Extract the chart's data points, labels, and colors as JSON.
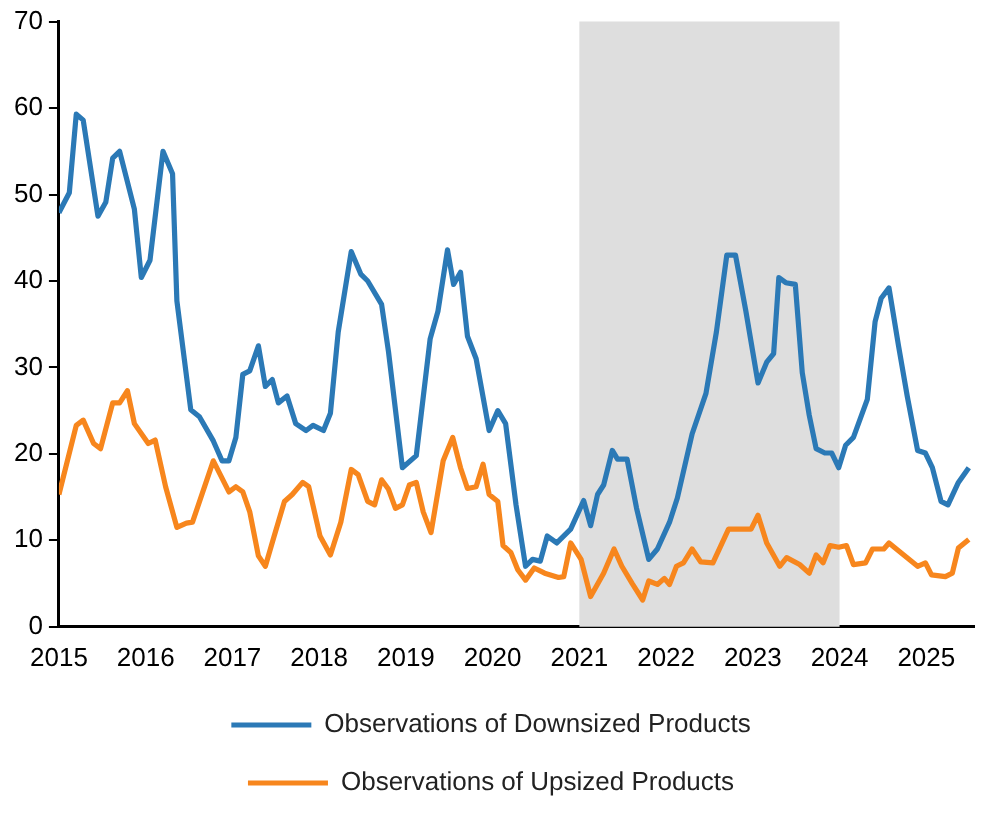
{
  "chart_data": {
    "type": "line",
    "xlim": [
      2015,
      2025.55
    ],
    "xticks": [
      2015,
      2016,
      2017,
      2018,
      2019,
      2020,
      2021,
      2022,
      2023,
      2024,
      2025
    ],
    "ylim": [
      0,
      70
    ],
    "yticks": [
      0,
      10,
      20,
      30,
      40,
      50,
      60,
      70
    ],
    "grid": false,
    "legend": "bottom",
    "marker": "none",
    "line_style": "solid",
    "bands": [
      {
        "axis": "x",
        "from": 2021,
        "to": 2024,
        "color": "#dedede"
      }
    ],
    "series": [
      {
        "name": "Observations of Downsized Products",
        "color": "#2b79b6",
        "x": [
          2015.0,
          2015.12,
          2015.2,
          2015.28,
          2015.45,
          2015.54,
          2015.62,
          2015.7,
          2015.87,
          2015.95,
          2016.05,
          2016.2,
          2016.31,
          2016.36,
          2016.52,
          2016.62,
          2016.78,
          2016.88,
          2016.96,
          2017.04,
          2017.12,
          2017.2,
          2017.3,
          2017.38,
          2017.46,
          2017.53,
          2017.63,
          2017.73,
          2017.85,
          2017.93,
          2018.05,
          2018.13,
          2018.22,
          2018.37,
          2018.48,
          2018.56,
          2018.72,
          2018.8,
          2018.96,
          2019.12,
          2019.28,
          2019.37,
          2019.48,
          2019.55,
          2019.63,
          2019.71,
          2019.81,
          2019.96,
          2020.06,
          2020.15,
          2020.27,
          2020.38,
          2020.46,
          2020.55,
          2020.63,
          2020.74,
          2020.9,
          2021.05,
          2021.13,
          2021.21,
          2021.28,
          2021.38,
          2021.44,
          2021.55,
          2021.66,
          2021.8,
          2021.9,
          2022.04,
          2022.13,
          2022.3,
          2022.46,
          2022.58,
          2022.7,
          2022.8,
          2022.92,
          2023.06,
          2023.16,
          2023.24,
          2023.3,
          2023.38,
          2023.49,
          2023.57,
          2023.65,
          2023.73,
          2023.83,
          2023.91,
          2023.99,
          2024.07,
          2024.16,
          2024.32,
          2024.41,
          2024.48,
          2024.57,
          2024.68,
          2024.78,
          2024.9,
          2024.99,
          2025.07,
          2025.17,
          2025.25,
          2025.37,
          2025.49
        ],
        "values": [
          47.9,
          50.2,
          59.3,
          58.6,
          47.5,
          49.1,
          54.2,
          55,
          48.3,
          40.4,
          42.4,
          55,
          52.4,
          37.7,
          25.1,
          24.3,
          21.5,
          19.2,
          19.2,
          21.9,
          29.2,
          29.6,
          32.5,
          27.8,
          28.6,
          25.9,
          26.7,
          23.5,
          22.7,
          23.3,
          22.7,
          24.7,
          34.1,
          43.4,
          40.8,
          40,
          37.3,
          31.8,
          18.4,
          19.8,
          33.3,
          36.5,
          43.6,
          39.6,
          41,
          33.6,
          31,
          22.7,
          25,
          23.5,
          14.1,
          7,
          7.8,
          7.6,
          10.5,
          9.7,
          11.3,
          14.6,
          11.7,
          15.3,
          16.4,
          20.4,
          19.4,
          19.4,
          13.7,
          7.8,
          9,
          12.1,
          14.9,
          22.3,
          27,
          34.1,
          43,
          43,
          36.5,
          28.2,
          30.6,
          31.6,
          40.4,
          39.8,
          39.6,
          29.4,
          24.5,
          20.6,
          20.1,
          20.1,
          18.4,
          21,
          21.9,
          26.3,
          35.3,
          38,
          39.2,
          32.5,
          26.7,
          20.4,
          20.1,
          18.4,
          14.5,
          14.1,
          16.7,
          18.4
        ]
      },
      {
        "name": "Observations of Upsized Products",
        "color": "#f7861d",
        "x": [
          2015.0,
          2015.2,
          2015.28,
          2015.4,
          2015.48,
          2015.62,
          2015.7,
          2015.79,
          2015.87,
          2016.03,
          2016.11,
          2016.23,
          2016.36,
          2016.47,
          2016.54,
          2016.78,
          2016.96,
          2017.04,
          2017.12,
          2017.2,
          2017.3,
          2017.38,
          2017.47,
          2017.6,
          2017.69,
          2017.81,
          2017.88,
          2018.01,
          2018.13,
          2018.25,
          2018.37,
          2018.45,
          2018.56,
          2018.64,
          2018.72,
          2018.8,
          2018.88,
          2018.96,
          2019.04,
          2019.12,
          2019.2,
          2019.29,
          2019.43,
          2019.54,
          2019.63,
          2019.71,
          2019.81,
          2019.89,
          2019.96,
          2020.06,
          2020.12,
          2020.21,
          2020.29,
          2020.38,
          2020.48,
          2020.6,
          2020.76,
          2020.82,
          2020.9,
          2021.02,
          2021.13,
          2021.28,
          2021.4,
          2021.49,
          2021.61,
          2021.73,
          2021.8,
          2021.9,
          2021.98,
          2022.04,
          2022.12,
          2022.2,
          2022.3,
          2022.4,
          2022.54,
          2022.72,
          2022.98,
          2023.06,
          2023.16,
          2023.31,
          2023.39,
          2023.54,
          2023.65,
          2023.73,
          2023.81,
          2023.89,
          2023.99,
          2024.08,
          2024.16,
          2024.3,
          2024.38,
          2024.51,
          2024.57,
          2024.74,
          2024.9,
          2024.99,
          2025.06,
          2025.22,
          2025.3,
          2025.37,
          2025.49
        ],
        "values": [
          15.3,
          23.3,
          23.9,
          21.2,
          20.6,
          25.9,
          25.9,
          27.3,
          23.5,
          21.2,
          21.6,
          16.2,
          11.5,
          12,
          12.1,
          19.2,
          15.6,
          16.2,
          15.6,
          13.3,
          8.2,
          7,
          10.1,
          14.5,
          15.3,
          16.7,
          16.2,
          10.5,
          8.3,
          12.1,
          18.2,
          17.6,
          14.5,
          14.1,
          17,
          15.9,
          13.7,
          14.1,
          16.4,
          16.7,
          13.3,
          10.9,
          19.2,
          21.9,
          18.4,
          16,
          16.2,
          18.8,
          15.3,
          14.5,
          9.4,
          8.6,
          6.6,
          5.4,
          6.8,
          6.2,
          5.7,
          5.8,
          9.7,
          7.8,
          3.5,
          6.2,
          9,
          7,
          5,
          3.1,
          5.3,
          4.9,
          5.6,
          4.9,
          7,
          7.4,
          9,
          7.5,
          7.4,
          11.3,
          11.3,
          12.9,
          9.7,
          7,
          8,
          7.2,
          6.2,
          8.3,
          7.4,
          9.4,
          9.2,
          9.4,
          7.2,
          7.4,
          9,
          9,
          9.7,
          8.3,
          7,
          7.4,
          6,
          5.8,
          6.2,
          9.1,
          10.1
        ]
      }
    ]
  }
}
